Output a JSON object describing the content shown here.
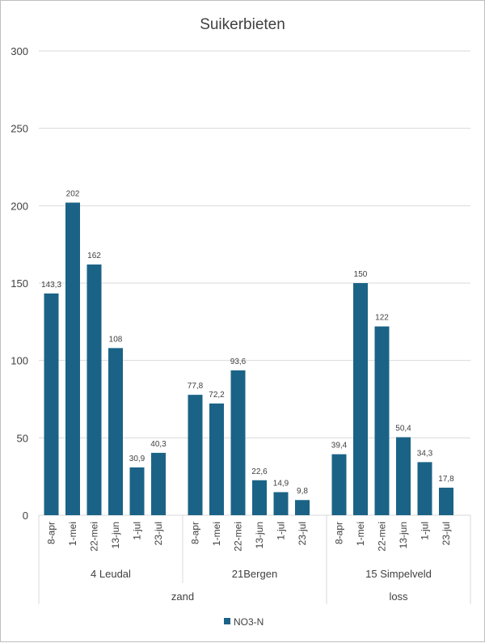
{
  "chart_data": {
    "type": "bar",
    "title": "Suikerbieten",
    "ylim": [
      0,
      300
    ],
    "yticks": [
      0,
      50,
      100,
      150,
      200,
      250,
      300
    ],
    "grid": true,
    "legend_position": "bottom",
    "colors": {
      "bar": "#1b6386",
      "grid": "#d9d9d9",
      "text": "#404040"
    },
    "series": [
      {
        "name": "NO3-N"
      }
    ],
    "groups": [
      {
        "location": "4 Leudal",
        "soil": "zand",
        "categories": [
          "8-apr",
          "1-mei",
          "22-mei",
          "13-jun",
          "1-jul",
          "23-jul"
        ],
        "values": [
          143.3,
          202,
          162,
          108,
          30.9,
          40.3
        ],
        "labels": [
          "143,3",
          "202",
          "162",
          "108",
          "30,9",
          "40,3"
        ]
      },
      {
        "location": "21Bergen",
        "soil": "zand",
        "categories": [
          "8-apr",
          "1-mei",
          "22-mei",
          "13-jun",
          "1-jul",
          "23-jul"
        ],
        "values": [
          77.8,
          72.2,
          93.6,
          22.6,
          14.9,
          9.8
        ],
        "labels": [
          "77,8",
          "72,2",
          "93,6",
          "22,6",
          "14,9",
          "9,8"
        ]
      },
      {
        "location": "15 Simpelveld",
        "soil": "loss",
        "categories": [
          "8-apr",
          "1-mei",
          "22-mei",
          "13-jun",
          "1-jul",
          "23-jul"
        ],
        "values": [
          39.4,
          150,
          122,
          50.4,
          34.3,
          17.8
        ],
        "labels": [
          "39,4",
          "150",
          "122",
          "50,4",
          "34,3",
          "17,8"
        ]
      }
    ],
    "soil_groups": [
      {
        "label": "zand",
        "locations": 2
      },
      {
        "label": "loss",
        "locations": 1
      }
    ]
  }
}
